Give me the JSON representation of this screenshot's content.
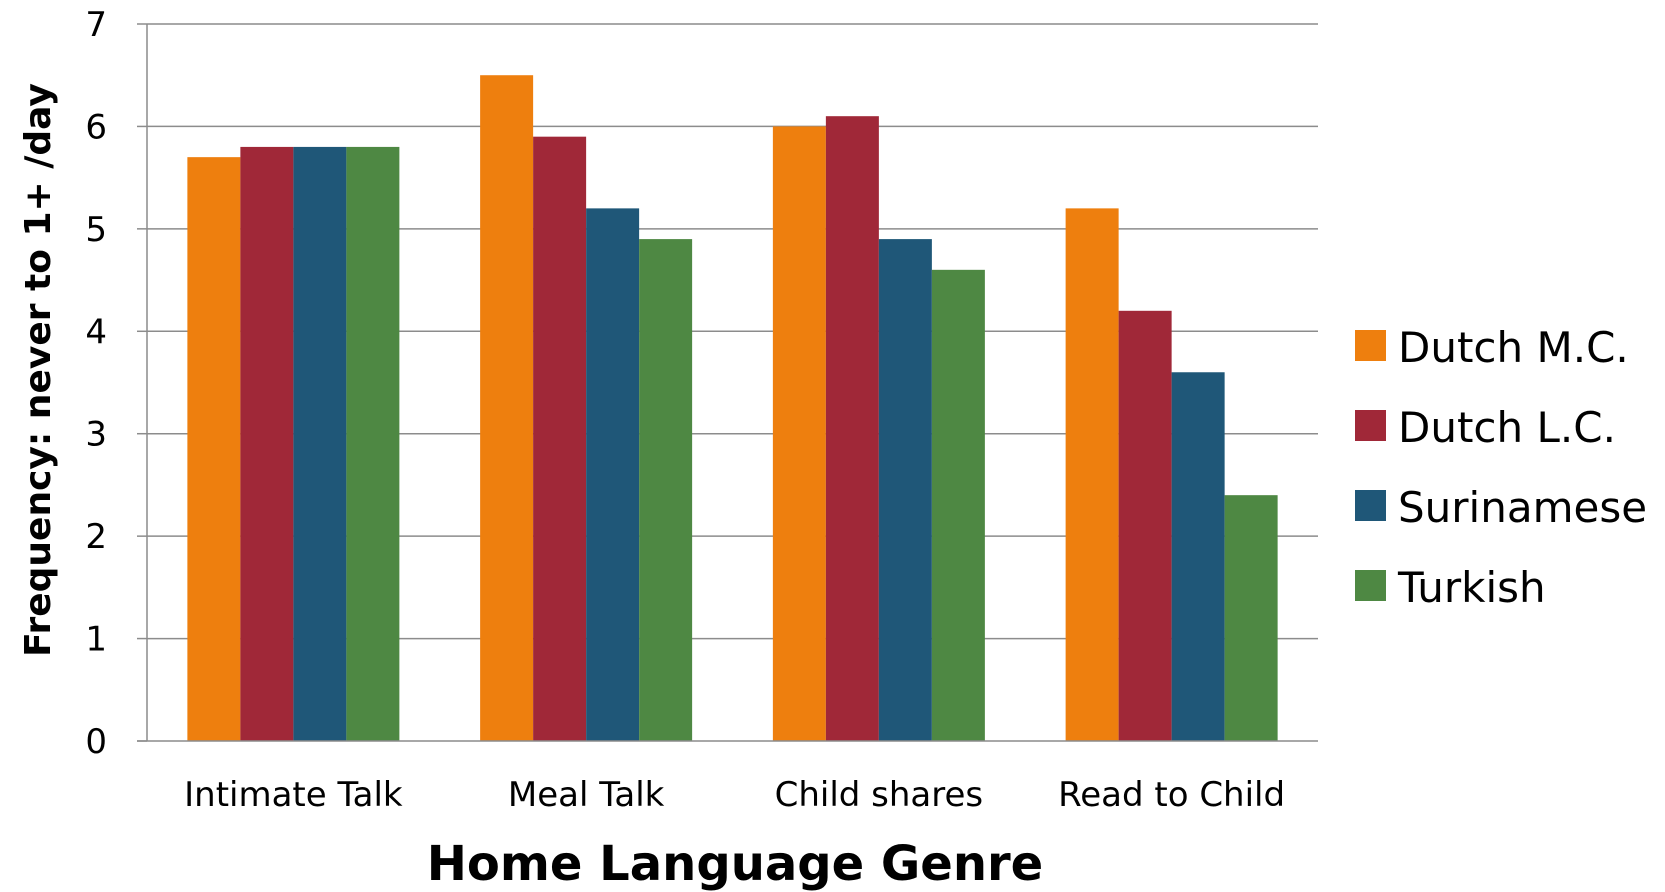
{
  "chart_data": {
    "type": "bar",
    "title": "",
    "xlabel": "Home Language Genre",
    "ylabel": "Frequency: never  to 1+ /day",
    "ylim": [
      0,
      7
    ],
    "yticks": [
      "0",
      "1",
      "2",
      "3",
      "4",
      "5",
      "6",
      "7"
    ],
    "grid": true,
    "legend_position": "right",
    "categories": [
      "Intimate Talk",
      "Meal Talk",
      "Child shares",
      "Read to Child"
    ],
    "series": [
      {
        "name": "Dutch M.C.",
        "color": "#EE7F0E",
        "values": [
          5.7,
          6.5,
          6.0,
          5.2
        ]
      },
      {
        "name": "Dutch L.C.",
        "color": "#A02838",
        "values": [
          5.8,
          5.9,
          6.1,
          4.2
        ]
      },
      {
        "name": "Surinamese",
        "color": "#1F5778",
        "values": [
          5.8,
          5.2,
          4.9,
          3.6
        ]
      },
      {
        "name": "Turkish",
        "color": "#4E8843",
        "values": [
          5.8,
          4.9,
          4.6,
          2.4
        ]
      }
    ]
  }
}
